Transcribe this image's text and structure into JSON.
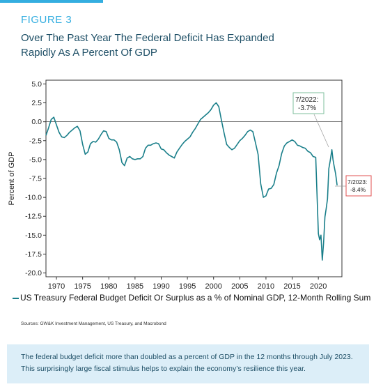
{
  "figure_label": "FIGURE 3",
  "figure_title": "Over The Past Year The Federal Deficit Has Expanded Rapidly As A Percent Of GDP",
  "legend_label": "US Treasury Federal Budget Deficit Or Surplus as a % of Nominal GDP, 12-Month Rolling Sum",
  "sources": "Sources: GW&K Investment Management, US Treasury, and Macrobond",
  "footer_text": "The federal budget deficit more than doubled as a percent of GDP in the 12 months through July 2023. This surprisingly large fiscal stimulus helps to explain the economy’s resilience this year.",
  "colors": {
    "accent": "#34aee0",
    "title": "#1e4f66",
    "line": "#1a7f8a",
    "footer_bg": "#dceef8",
    "callout_green": "#7fbf9e",
    "callout_red": "#e05050"
  },
  "chart_data": {
    "type": "line",
    "ylabel": "Percent of GDP",
    "xlim": [
      1968,
      2024.5
    ],
    "ylim": [
      -20.5,
      5.5
    ],
    "y_ticks": [
      "5.0",
      "2.5",
      "0.0",
      "-2.5",
      "-5.0",
      "-7.5",
      "-10.0",
      "-12.5",
      "-15.0",
      "-17.5",
      "-20.0"
    ],
    "x_ticks": [
      "1970",
      "1975",
      "1980",
      "1985",
      "1990",
      "1995",
      "2000",
      "2005",
      "2010",
      "2015",
      "2020"
    ],
    "series": [
      {
        "name": "US Treasury Federal Budget Deficit Or Surplus as a % of Nominal GDP, 12-Month Rolling Sum",
        "x": [
          1968.0,
          1968.5,
          1969.0,
          1969.5,
          1970.0,
          1970.5,
          1971.0,
          1971.5,
          1972.0,
          1972.5,
          1973.0,
          1973.5,
          1974.0,
          1974.5,
          1975.0,
          1975.5,
          1976.0,
          1976.5,
          1977.0,
          1977.5,
          1978.0,
          1978.5,
          1979.0,
          1979.5,
          1980.0,
          1980.5,
          1981.0,
          1981.5,
          1982.0,
          1982.5,
          1983.0,
          1983.5,
          1984.0,
          1984.5,
          1985.0,
          1985.5,
          1986.0,
          1986.5,
          1987.0,
          1987.5,
          1988.0,
          1988.5,
          1989.0,
          1989.5,
          1990.0,
          1990.5,
          1991.0,
          1991.5,
          1992.0,
          1992.5,
          1993.0,
          1993.5,
          1994.0,
          1994.5,
          1995.0,
          1995.5,
          1996.0,
          1996.5,
          1997.0,
          1997.5,
          1998.0,
          1998.5,
          1999.0,
          1999.5,
          2000.0,
          2000.5,
          2001.0,
          2001.5,
          2002.0,
          2002.5,
          2003.0,
          2003.5,
          2004.0,
          2004.5,
          2005.0,
          2005.5,
          2006.0,
          2006.5,
          2007.0,
          2007.5,
          2008.0,
          2008.5,
          2009.0,
          2009.5,
          2010.0,
          2010.5,
          2011.0,
          2011.5,
          2012.0,
          2012.5,
          2013.0,
          2013.5,
          2014.0,
          2014.5,
          2015.0,
          2015.5,
          2016.0,
          2016.5,
          2017.0,
          2017.5,
          2018.0,
          2018.5,
          2019.0,
          2019.5,
          2020.0,
          2020.25,
          2020.5,
          2020.75,
          2021.0,
          2021.25,
          2021.5,
          2021.75,
          2022.0,
          2022.25,
          2022.58,
          2022.8,
          2023.0,
          2023.3,
          2023.58
        ],
        "values": [
          -1.8,
          -0.8,
          0.3,
          0.6,
          -0.4,
          -1.4,
          -2.0,
          -2.1,
          -1.8,
          -1.4,
          -1.1,
          -0.8,
          -0.6,
          -1.2,
          -3.0,
          -4.3,
          -4.0,
          -2.9,
          -2.6,
          -2.7,
          -2.3,
          -1.7,
          -1.2,
          -1.3,
          -2.2,
          -2.4,
          -2.4,
          -2.7,
          -3.7,
          -5.4,
          -5.8,
          -4.8,
          -4.6,
          -4.9,
          -5.0,
          -4.9,
          -4.9,
          -4.6,
          -3.5,
          -3.1,
          -3.1,
          -2.9,
          -2.8,
          -2.9,
          -3.6,
          -3.7,
          -4.1,
          -4.4,
          -4.6,
          -4.8,
          -4.0,
          -3.5,
          -3.0,
          -2.6,
          -2.3,
          -2.0,
          -1.4,
          -0.9,
          -0.3,
          0.3,
          0.6,
          0.9,
          1.2,
          1.6,
          2.2,
          2.5,
          2.0,
          0.2,
          -1.5,
          -3.0,
          -3.4,
          -3.7,
          -3.5,
          -3.0,
          -2.5,
          -2.2,
          -1.8,
          -1.3,
          -1.1,
          -1.3,
          -2.8,
          -4.3,
          -8.2,
          -10.0,
          -9.8,
          -8.9,
          -8.8,
          -8.3,
          -6.8,
          -5.8,
          -4.2,
          -3.2,
          -2.8,
          -2.6,
          -2.4,
          -2.6,
          -3.1,
          -3.2,
          -3.4,
          -3.5,
          -3.9,
          -4.1,
          -4.6,
          -4.7,
          -14.8,
          -15.6,
          -15.0,
          -18.3,
          -16.0,
          -12.6,
          -11.5,
          -10.2,
          -6.2,
          -5.2,
          -3.7,
          -5.0,
          -5.8,
          -6.9,
          -8.4
        ]
      }
    ],
    "annotations": [
      {
        "label": "7/2022:",
        "value_text": "-3.7%",
        "x": 2022.58,
        "y": -3.7
      },
      {
        "label": "7/2023:",
        "value_text": "-8.4%",
        "x": 2023.58,
        "y": -8.4
      }
    ]
  }
}
